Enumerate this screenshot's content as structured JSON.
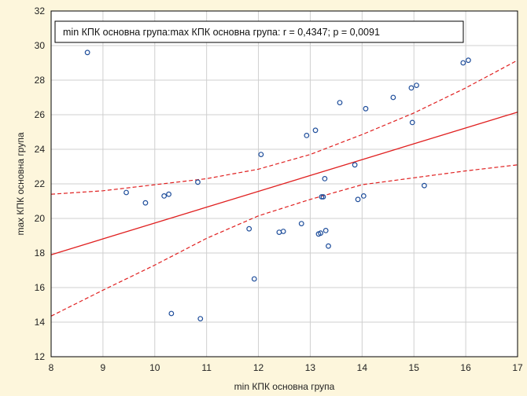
{
  "chart_data": {
    "type": "scatter",
    "title": "min КПК основна група:max КПК основна група:   r = 0,4347; p = 0,0091",
    "xlabel": "min КПК основна група",
    "ylabel": "max КПК основна група",
    "xlim": [
      8,
      17
    ],
    "ylim": [
      12,
      32
    ],
    "x_ticks": [
      8,
      9,
      10,
      11,
      12,
      13,
      14,
      15,
      16,
      17
    ],
    "y_ticks": [
      12,
      14,
      16,
      18,
      20,
      22,
      24,
      26,
      28,
      30,
      32
    ],
    "grid": true,
    "legend_position": "top-left",
    "colors": {
      "points": "#1f4e9b",
      "fit": "#e02020",
      "background": "#fdf6dc",
      "plot": "#ffffff",
      "grid": "#cfcfcf"
    },
    "points": [
      {
        "x": 8.7,
        "y": 29.6
      },
      {
        "x": 9.45,
        "y": 21.5
      },
      {
        "x": 9.82,
        "y": 20.9
      },
      {
        "x": 10.18,
        "y": 21.3
      },
      {
        "x": 10.27,
        "y": 21.4
      },
      {
        "x": 10.32,
        "y": 14.5
      },
      {
        "x": 10.83,
        "y": 22.1
      },
      {
        "x": 10.88,
        "y": 14.2
      },
      {
        "x": 11.82,
        "y": 19.4
      },
      {
        "x": 11.92,
        "y": 16.5
      },
      {
        "x": 12.05,
        "y": 23.7
      },
      {
        "x": 12.4,
        "y": 19.2
      },
      {
        "x": 12.48,
        "y": 19.25
      },
      {
        "x": 12.83,
        "y": 19.7
      },
      {
        "x": 12.93,
        "y": 24.8
      },
      {
        "x": 13.1,
        "y": 25.1
      },
      {
        "x": 13.16,
        "y": 19.1
      },
      {
        "x": 13.2,
        "y": 19.15
      },
      {
        "x": 13.22,
        "y": 21.25
      },
      {
        "x": 13.25,
        "y": 21.25
      },
      {
        "x": 13.28,
        "y": 22.3
      },
      {
        "x": 13.3,
        "y": 19.3
      },
      {
        "x": 13.35,
        "y": 18.4
      },
      {
        "x": 13.57,
        "y": 26.7
      },
      {
        "x": 13.86,
        "y": 23.1
      },
      {
        "x": 13.92,
        "y": 21.1
      },
      {
        "x": 14.03,
        "y": 21.3
      },
      {
        "x": 14.07,
        "y": 26.35
      },
      {
        "x": 14.6,
        "y": 27.0
      },
      {
        "x": 14.95,
        "y": 27.55
      },
      {
        "x": 14.97,
        "y": 25.55
      },
      {
        "x": 15.05,
        "y": 27.7
      },
      {
        "x": 15.2,
        "y": 21.9
      },
      {
        "x": 15.95,
        "y": 29.0
      },
      {
        "x": 16.05,
        "y": 29.15
      }
    ],
    "fit_line": [
      {
        "x": 8,
        "y": 17.9
      },
      {
        "x": 17,
        "y": 26.15
      }
    ],
    "ci_upper": [
      {
        "x": 8,
        "y": 21.4
      },
      {
        "x": 9,
        "y": 21.6
      },
      {
        "x": 10,
        "y": 21.95
      },
      {
        "x": 11,
        "y": 22.3
      },
      {
        "x": 12,
        "y": 22.85
      },
      {
        "x": 13,
        "y": 23.7
      },
      {
        "x": 14,
        "y": 24.85
      },
      {
        "x": 15,
        "y": 26.1
      },
      {
        "x": 16,
        "y": 27.55
      },
      {
        "x": 17,
        "y": 29.15
      }
    ],
    "ci_lower": [
      {
        "x": 8,
        "y": 14.35
      },
      {
        "x": 9,
        "y": 15.85
      },
      {
        "x": 10,
        "y": 17.3
      },
      {
        "x": 11,
        "y": 18.85
      },
      {
        "x": 12,
        "y": 20.15
      },
      {
        "x": 13,
        "y": 21.1
      },
      {
        "x": 14,
        "y": 21.95
      },
      {
        "x": 15,
        "y": 22.35
      },
      {
        "x": 16,
        "y": 22.75
      },
      {
        "x": 17,
        "y": 23.1
      }
    ]
  }
}
